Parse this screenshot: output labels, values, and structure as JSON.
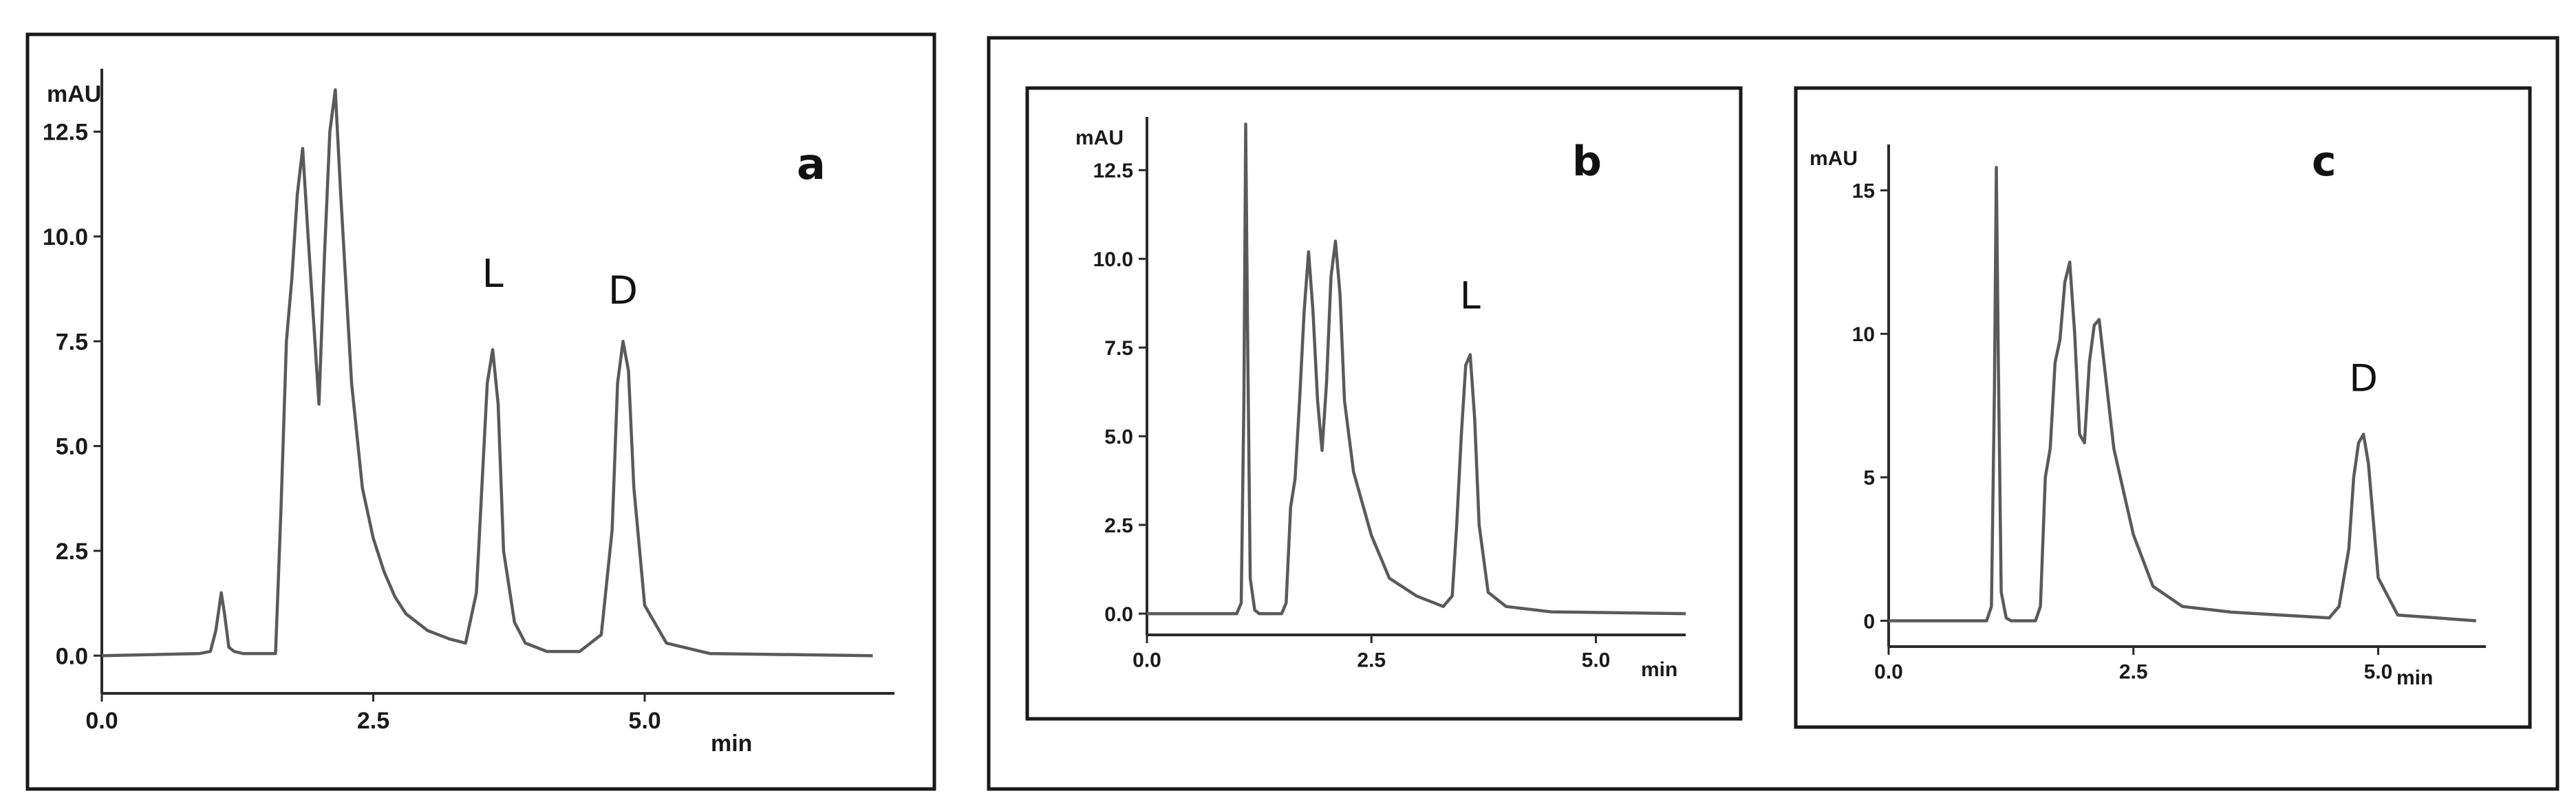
{
  "chart_data": [
    {
      "type": "line",
      "panel": "a",
      "title": "",
      "ylabel": "mAU",
      "xlabel": "min",
      "xlim": [
        0,
        7.3
      ],
      "ylim": [
        -0.9,
        14.0
      ],
      "xticks": [
        0.0,
        2.5,
        5.0
      ],
      "xtick_labels": [
        "0.0",
        "2.5",
        "5.0"
      ],
      "yticks": [
        0.0,
        2.5,
        5.0,
        7.5,
        10.0,
        12.5
      ],
      "ytick_labels": [
        "0.0",
        "2.5",
        "5.0",
        "7.5",
        "10.0",
        "12.5"
      ],
      "peak_labels": [
        {
          "text": "L",
          "x": 3.6,
          "y": 8.8
        },
        {
          "text": "D",
          "x": 4.8,
          "y": 8.4
        }
      ],
      "series": [
        {
          "name": "chromatogram",
          "x": [
            0.0,
            0.9,
            1.0,
            1.05,
            1.1,
            1.13,
            1.17,
            1.22,
            1.3,
            1.6,
            1.65,
            1.7,
            1.75,
            1.8,
            1.85,
            1.9,
            1.95,
            2.0,
            2.05,
            2.1,
            2.15,
            2.2,
            2.3,
            2.4,
            2.5,
            2.6,
            2.7,
            2.8,
            3.0,
            3.2,
            3.35,
            3.45,
            3.5,
            3.55,
            3.6,
            3.65,
            3.7,
            3.8,
            3.9,
            4.1,
            4.4,
            4.6,
            4.7,
            4.75,
            4.8,
            4.85,
            4.9,
            5.0,
            5.2,
            5.6,
            7.1
          ],
          "y": [
            0.0,
            0.05,
            0.1,
            0.6,
            1.5,
            1.0,
            0.2,
            0.1,
            0.05,
            0.05,
            3.5,
            7.5,
            9.0,
            11.0,
            12.1,
            10.0,
            8.0,
            6.0,
            9.5,
            12.5,
            13.5,
            11.0,
            6.5,
            4.0,
            2.8,
            2.0,
            1.4,
            1.0,
            0.6,
            0.4,
            0.3,
            1.5,
            4.0,
            6.5,
            7.3,
            6.0,
            2.5,
            0.8,
            0.3,
            0.1,
            0.1,
            0.5,
            3.0,
            6.5,
            7.5,
            6.8,
            4.0,
            1.2,
            0.3,
            0.05,
            0.0
          ]
        }
      ]
    },
    {
      "type": "line",
      "panel": "b",
      "title": "",
      "ylabel": "mAU",
      "xlabel": "min",
      "xlim": [
        0,
        6.0
      ],
      "ylim": [
        -0.6,
        14.0
      ],
      "xticks": [
        0.0,
        2.5,
        5.0
      ],
      "xtick_labels": [
        "0.0",
        "2.5",
        "5.0"
      ],
      "yticks": [
        0.0,
        2.5,
        5.0,
        7.5,
        10.0,
        12.5
      ],
      "ytick_labels": [
        "0.0",
        "2.5",
        "5.0",
        "7.5",
        "10.0",
        "12.5"
      ],
      "peak_labels": [
        {
          "text": "L",
          "x": 3.6,
          "y": 8.6
        }
      ],
      "series": [
        {
          "name": "chromatogram",
          "x": [
            0.0,
            1.0,
            1.05,
            1.08,
            1.1,
            1.12,
            1.15,
            1.2,
            1.25,
            1.5,
            1.55,
            1.6,
            1.65,
            1.7,
            1.75,
            1.8,
            1.85,
            1.9,
            1.95,
            2.0,
            2.05,
            2.1,
            2.15,
            2.2,
            2.3,
            2.5,
            2.7,
            3.0,
            3.3,
            3.4,
            3.45,
            3.5,
            3.55,
            3.6,
            3.65,
            3.7,
            3.8,
            4.0,
            4.5,
            6.0
          ],
          "y": [
            0.0,
            0.0,
            0.3,
            6.0,
            13.8,
            8.0,
            1.0,
            0.1,
            0.0,
            0.0,
            0.3,
            3.0,
            3.8,
            6.0,
            8.5,
            10.2,
            8.5,
            6.0,
            4.6,
            6.5,
            9.5,
            10.5,
            9.0,
            6.0,
            4.0,
            2.2,
            1.0,
            0.5,
            0.2,
            0.5,
            2.5,
            5.0,
            7.0,
            7.3,
            5.5,
            2.5,
            0.6,
            0.2,
            0.05,
            0.0
          ]
        }
      ]
    },
    {
      "type": "line",
      "panel": "c",
      "title": "",
      "ylabel": "mAU",
      "xlabel": "min",
      "xlim": [
        0,
        6.1
      ],
      "ylim": [
        -0.9,
        16.6
      ],
      "xticks": [
        0.0,
        2.5,
        5.0
      ],
      "xtick_labels": [
        "0.0",
        "2.5",
        "5.0"
      ],
      "yticks": [
        0,
        5,
        10,
        15
      ],
      "ytick_labels": [
        "0",
        "5",
        "10",
        "15"
      ],
      "peak_labels": [
        {
          "text": "D",
          "x": 4.85,
          "y": 8.0
        }
      ],
      "series": [
        {
          "name": "chromatogram",
          "x": [
            0.0,
            1.0,
            1.05,
            1.08,
            1.1,
            1.12,
            1.15,
            1.2,
            1.25,
            1.5,
            1.55,
            1.6,
            1.65,
            1.7,
            1.75,
            1.8,
            1.85,
            1.9,
            1.95,
            2.0,
            2.05,
            2.1,
            2.15,
            2.2,
            2.3,
            2.5,
            2.7,
            3.0,
            3.5,
            4.0,
            4.5,
            4.6,
            4.7,
            4.75,
            4.8,
            4.85,
            4.9,
            4.95,
            5.0,
            5.2,
            6.0
          ],
          "y": [
            0.0,
            0.0,
            0.5,
            8.0,
            15.8,
            9.0,
            1.0,
            0.1,
            0.0,
            0.0,
            0.5,
            5.0,
            6.0,
            9.0,
            9.8,
            11.8,
            12.5,
            10.0,
            6.5,
            6.2,
            9.0,
            10.3,
            10.5,
            9.0,
            6.0,
            3.0,
            1.2,
            0.5,
            0.3,
            0.2,
            0.1,
            0.5,
            2.5,
            5.0,
            6.2,
            6.5,
            5.5,
            3.5,
            1.5,
            0.2,
            0.0
          ]
        }
      ]
    }
  ]
}
